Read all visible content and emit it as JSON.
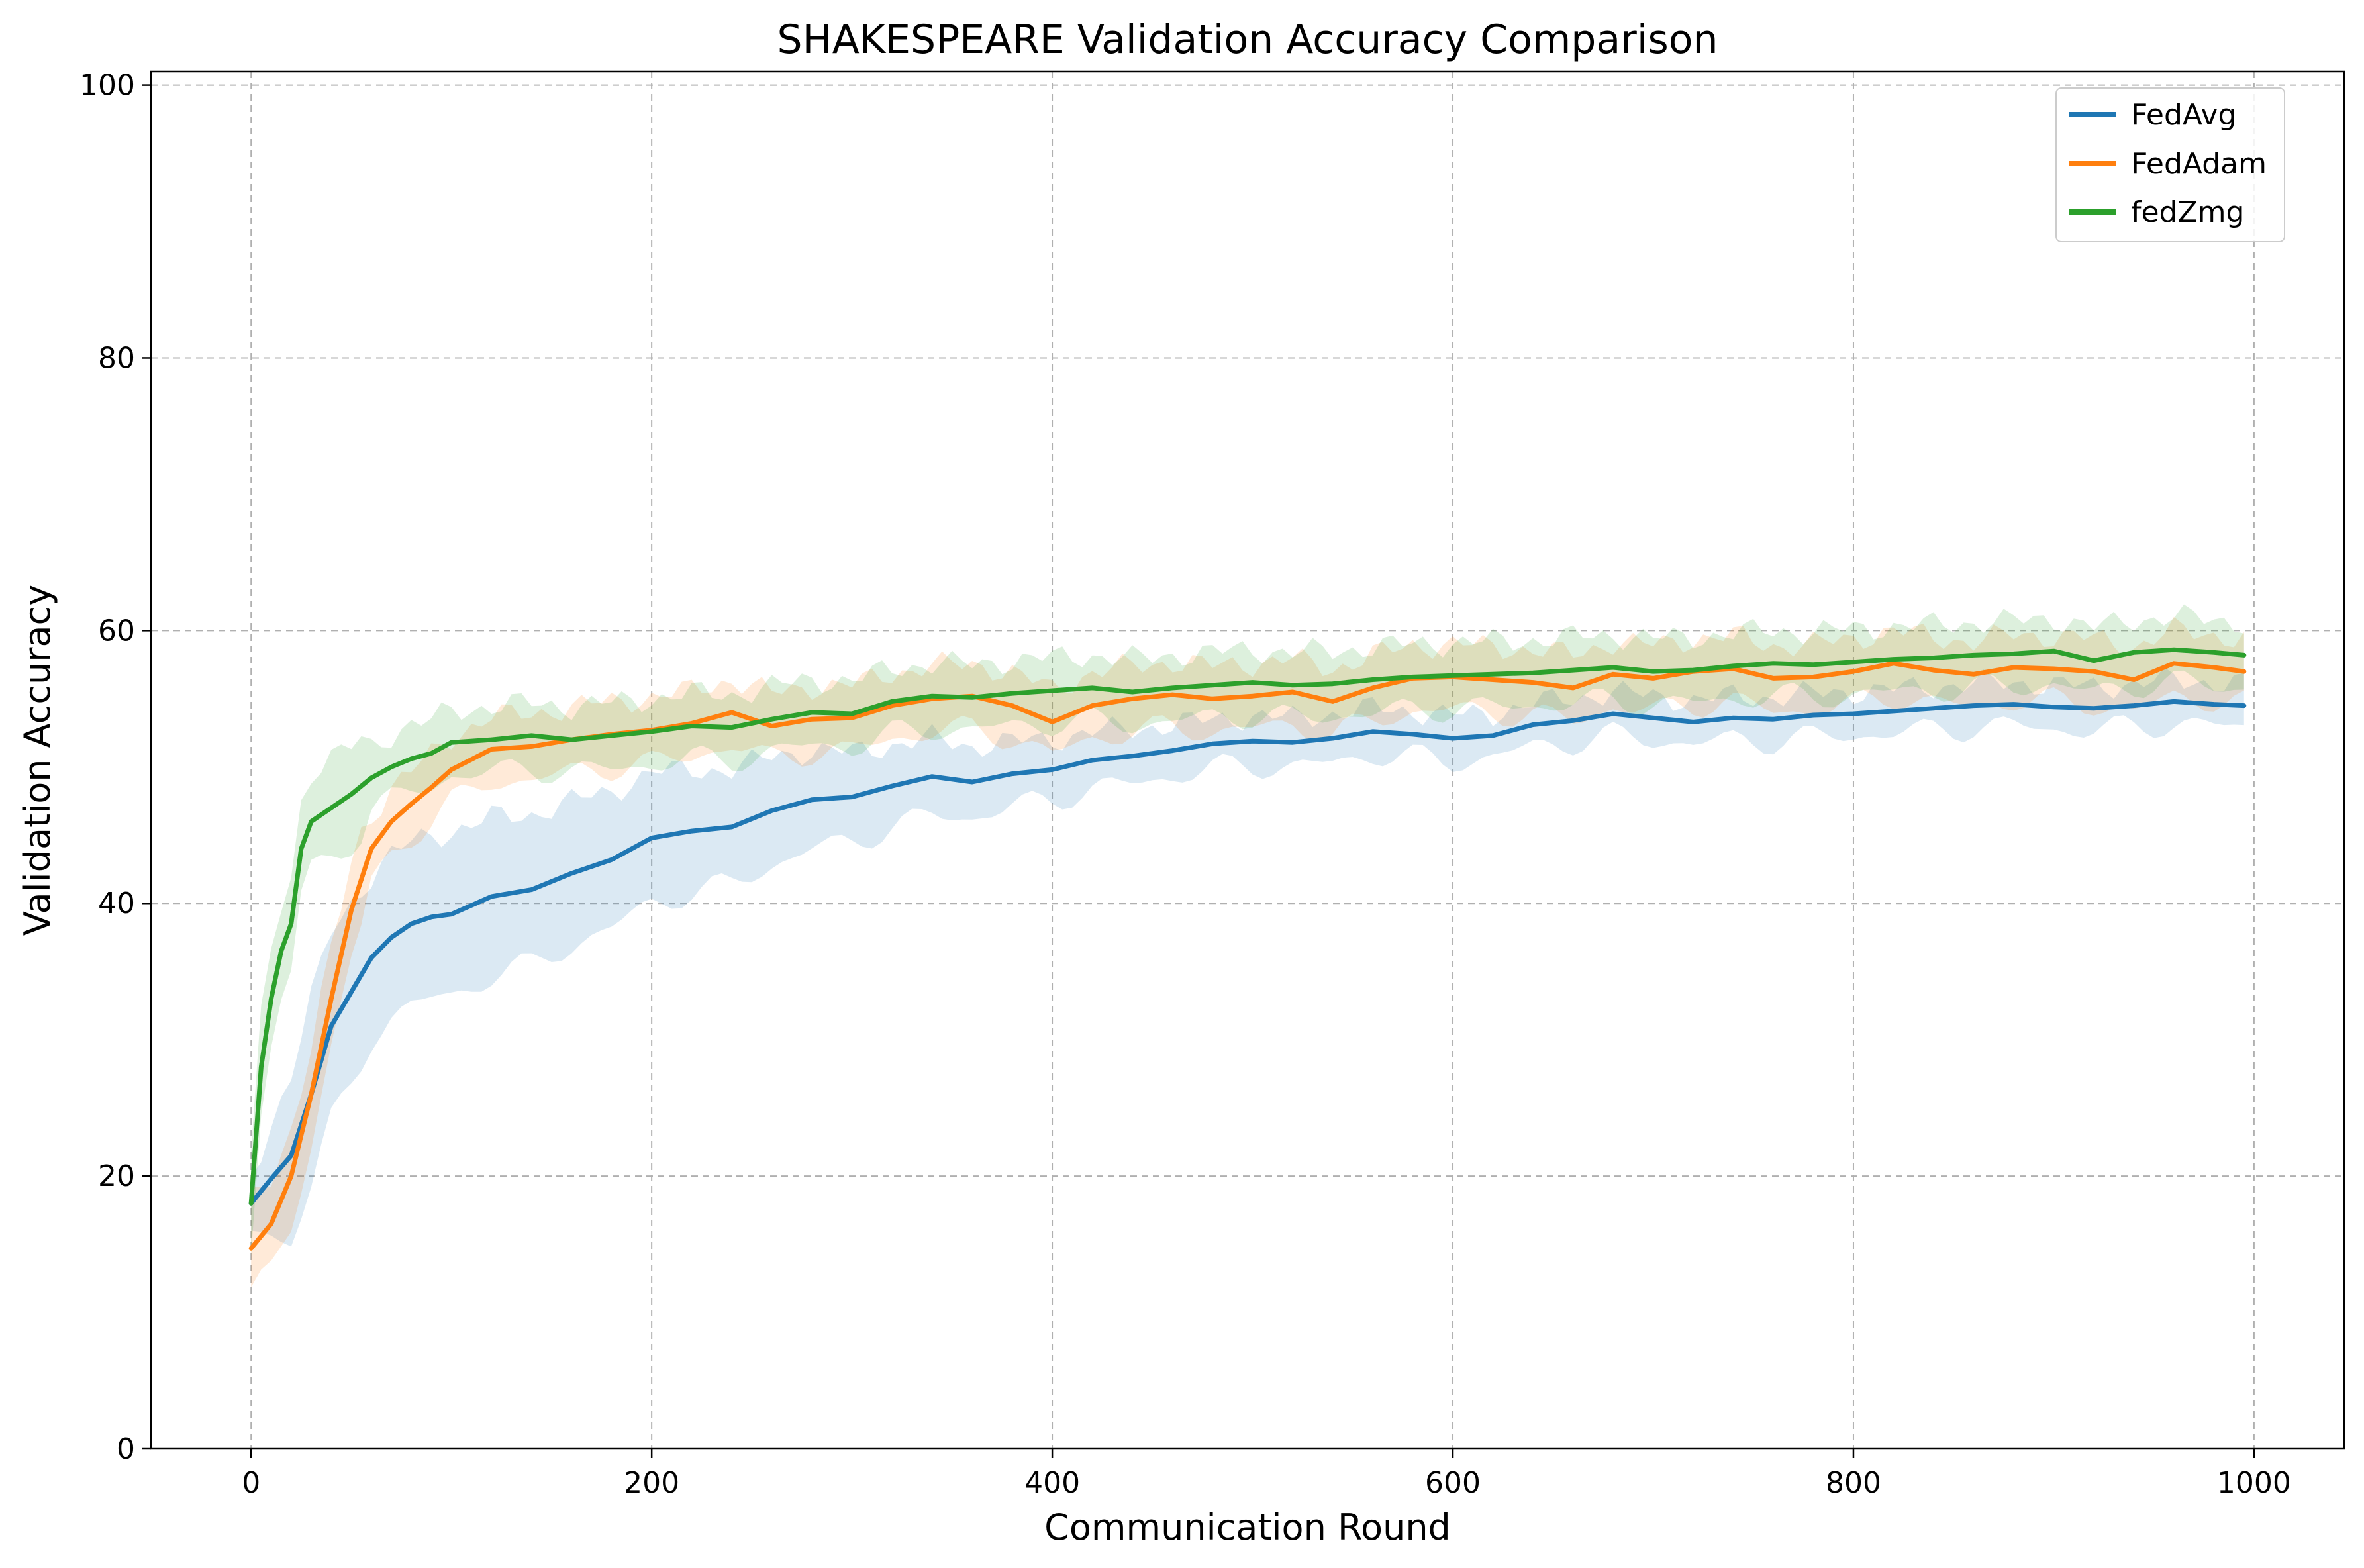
{
  "chart_data": {
    "type": "line",
    "title": "SHAKESPEARE Validation Accuracy Comparison",
    "xlabel": "Communication Round",
    "ylabel": "Validation Accuracy",
    "xlim": [
      -50,
      1045
    ],
    "ylim": [
      0,
      101
    ],
    "xticks": [
      0,
      200,
      400,
      600,
      800,
      1000
    ],
    "yticks": [
      0,
      20,
      40,
      60,
      80,
      100
    ],
    "grid": true,
    "legend_position": "top-right",
    "series": [
      {
        "name": "FedAvg",
        "color": "#1f77b4",
        "x": [
          0,
          10,
          20,
          30,
          40,
          50,
          60,
          70,
          80,
          90,
          100,
          120,
          140,
          160,
          180,
          200,
          220,
          240,
          260,
          280,
          300,
          320,
          340,
          360,
          380,
          400,
          420,
          440,
          460,
          480,
          500,
          520,
          540,
          560,
          580,
          600,
          620,
          640,
          660,
          680,
          700,
          720,
          740,
          760,
          780,
          800,
          820,
          840,
          860,
          880,
          900,
          920,
          940,
          960,
          980,
          995
        ],
        "values": [
          18,
          19.8,
          21.5,
          26,
          31,
          33.5,
          36,
          37.5,
          38.5,
          39,
          39.2,
          40.5,
          41,
          42.2,
          43.2,
          44.8,
          45.3,
          45.6,
          46.8,
          47.6,
          47.8,
          48.6,
          49.3,
          48.9,
          49.5,
          49.8,
          50.5,
          50.8,
          51.2,
          51.7,
          51.9,
          51.8,
          52.1,
          52.6,
          52.4,
          52.1,
          52.3,
          53.1,
          53.4,
          53.9,
          53.6,
          53.3,
          53.6,
          53.5,
          53.8,
          53.9,
          54.1,
          54.3,
          54.5,
          54.6,
          54.4,
          54.3,
          54.5,
          54.8,
          54.6,
          54.5
        ],
        "band_width": [
          2,
          4,
          6,
          7,
          7,
          6.5,
          6,
          6,
          6,
          6,
          6,
          5.8,
          5.5,
          5.3,
          5,
          4.8,
          4.5,
          4.2,
          4,
          3.6,
          3.3,
          3,
          2.8,
          2.6,
          2.4,
          2.2,
          2.1,
          2,
          1.9,
          1.8,
          1.8,
          1.8,
          1.8,
          1.7,
          1.7,
          1.7,
          1.6,
          1.6,
          1.6,
          1.6,
          1.6,
          1.6,
          1.6,
          1.6,
          1.6,
          1.6,
          1.6,
          1.6,
          1.6,
          1.6,
          1.6,
          1.6,
          1.6,
          1.6,
          1.6,
          1.6
        ]
      },
      {
        "name": "FedAdam",
        "color": "#ff7f0e",
        "x": [
          0,
          10,
          20,
          30,
          40,
          50,
          60,
          70,
          80,
          90,
          100,
          120,
          140,
          160,
          180,
          200,
          220,
          240,
          260,
          280,
          300,
          320,
          340,
          360,
          380,
          400,
          420,
          440,
          460,
          480,
          500,
          520,
          540,
          560,
          580,
          600,
          620,
          640,
          660,
          680,
          700,
          720,
          740,
          760,
          780,
          800,
          820,
          840,
          860,
          880,
          900,
          920,
          940,
          960,
          980,
          995
        ],
        "values": [
          14.7,
          16.5,
          20,
          26,
          33,
          39.5,
          44,
          46,
          47.3,
          48.5,
          49.8,
          51.3,
          51.5,
          52,
          52.4,
          52.7,
          53.2,
          54,
          53,
          53.5,
          53.6,
          54.5,
          55,
          55.2,
          54.5,
          53.3,
          54.5,
          55,
          55.3,
          55,
          55.2,
          55.5,
          54.8,
          55.8,
          56.5,
          56.6,
          56.4,
          56.2,
          55.8,
          56.8,
          56.5,
          57,
          57.2,
          56.5,
          56.6,
          57,
          57.6,
          57.1,
          56.8,
          57.3,
          57.2,
          57,
          56.4,
          57.6,
          57.3,
          57
        ]
      },
      {
        "name": "fedZmg",
        "color": "#2ca02c",
        "x": [
          0,
          5,
          10,
          15,
          20,
          25,
          30,
          35,
          40,
          50,
          60,
          70,
          80,
          90,
          100,
          120,
          140,
          160,
          180,
          200,
          220,
          240,
          260,
          280,
          300,
          320,
          340,
          360,
          380,
          400,
          420,
          440,
          460,
          480,
          500,
          520,
          540,
          560,
          580,
          600,
          620,
          640,
          660,
          680,
          700,
          720,
          740,
          760,
          780,
          800,
          820,
          840,
          860,
          880,
          900,
          920,
          940,
          960,
          980,
          995
        ],
        "values": [
          18,
          28,
          33,
          36.5,
          38.5,
          44,
          46,
          46.5,
          47,
          48,
          49.2,
          50,
          50.6,
          51,
          51.8,
          52,
          52.3,
          52,
          52.3,
          52.6,
          53,
          52.9,
          53.5,
          54,
          53.9,
          54.8,
          55.2,
          55.1,
          55.4,
          55.6,
          55.8,
          55.5,
          55.8,
          56,
          56.2,
          56,
          56.1,
          56.4,
          56.6,
          56.7,
          56.8,
          56.9,
          57.1,
          57.3,
          57,
          57.1,
          57.4,
          57.6,
          57.5,
          57.7,
          57.9,
          58,
          58.2,
          58.3,
          58.5,
          57.8,
          58.4,
          58.6,
          58.4,
          58.2
        ]
      }
    ]
  }
}
